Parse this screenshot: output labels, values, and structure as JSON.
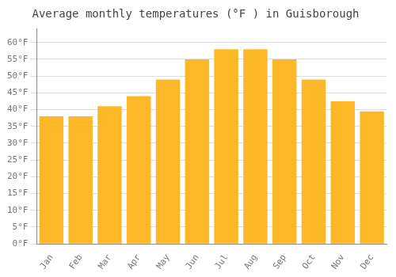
{
  "chart_data": {
    "type": "bar",
    "title": "Average monthly temperatures (°F ) in Guisborough",
    "categories": [
      "Jan",
      "Feb",
      "Mar",
      "Apr",
      "May",
      "Jun",
      "Jul",
      "Aug",
      "Sep",
      "Oct",
      "Nov",
      "Dec"
    ],
    "values": [
      38,
      38,
      41,
      44,
      49,
      55,
      58,
      58,
      55,
      49,
      42.5,
      39.5
    ],
    "color": "#FDB827",
    "ylim": [
      0,
      64
    ],
    "yticks": [
      {
        "value": 0,
        "label": "0°F"
      },
      {
        "value": 5,
        "label": "5°F"
      },
      {
        "value": 10,
        "label": "10°F"
      },
      {
        "value": 15,
        "label": "15°F"
      },
      {
        "value": 20,
        "label": "20°F"
      },
      {
        "value": 25,
        "label": "25°F"
      },
      {
        "value": 30,
        "label": "30°F"
      },
      {
        "value": 35,
        "label": "35°F"
      },
      {
        "value": 40,
        "label": "40°F"
      },
      {
        "value": 45,
        "label": "45°F"
      },
      {
        "value": 50,
        "label": "50°F"
      },
      {
        "value": 55,
        "label": "55°F"
      },
      {
        "value": 60,
        "label": "60°F"
      }
    ],
    "grid": true
  }
}
